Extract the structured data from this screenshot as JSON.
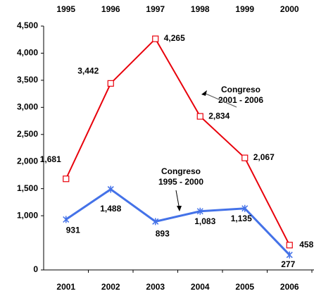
{
  "chart_data": {
    "type": "line",
    "categories": [
      "2001",
      "2002",
      "2003",
      "2004",
      "2005",
      "2006"
    ],
    "top_categories": [
      "1995",
      "1996",
      "1997",
      "1998",
      "1999",
      "2000"
    ],
    "series": [
      {
        "color": "#e8000b",
        "marker": "square",
        "values": [
          1681,
          3442,
          4265,
          2834,
          2067,
          458
        ],
        "value_labels": [
          "1,681",
          "3,442",
          "4,265",
          "2,834",
          "2,067",
          "458"
        ]
      },
      {
        "color": "#4472e8",
        "marker": "star",
        "axis_labels": "top",
        "values": [
          931,
          1488,
          893,
          1083,
          1135,
          277
        ],
        "value_labels": [
          "931",
          "1,488",
          "893",
          "1,083",
          "1,135",
          "277"
        ]
      }
    ],
    "ylim": [
      0,
      4500
    ],
    "yticks": [
      0,
      {
        "value": 1000,
        "label": "1,000"
      },
      {
        "value": 1500,
        "label": "1,500"
      },
      {
        "value": 2000,
        "label": "2,000"
      },
      {
        "value": 2500,
        "label": "2,500"
      },
      {
        "value": 3000,
        "label": "3,000"
      },
      {
        "value": 3500,
        "label": "3,500"
      },
      {
        "value": 4000,
        "label": "4,000"
      },
      {
        "value": 4500,
        "label": "4,500"
      }
    ],
    "annotations": [
      [
        "Congreso",
        "2001 - 2006"
      ],
      [
        "Congreso",
        "1995 - 2000"
      ]
    ]
  }
}
